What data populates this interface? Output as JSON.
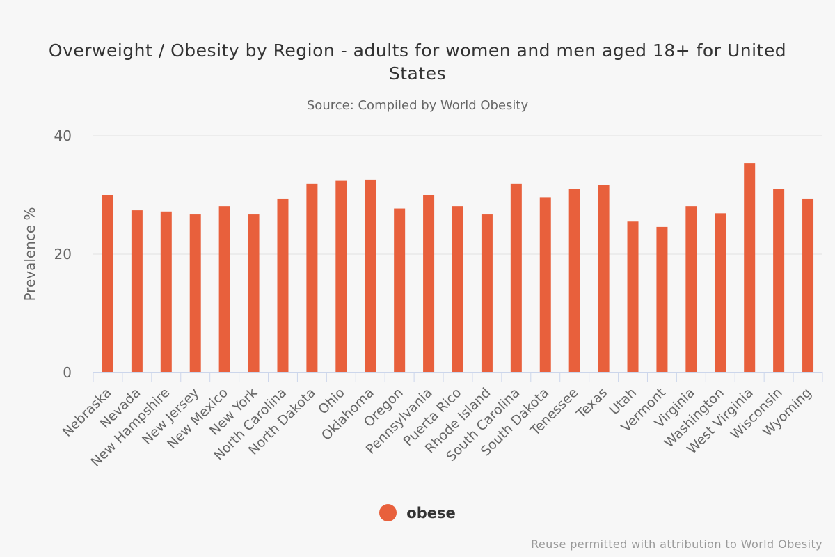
{
  "chart_data": {
    "type": "bar",
    "title": "Overweight / Obesity by Region - adults for women and men aged 18+ for United States",
    "subtitle": "Source: Compiled by World Obesity",
    "ylabel": "Prevalence %",
    "xlabel": "",
    "ylim": [
      0,
      40
    ],
    "yticks": [
      0,
      20,
      40
    ],
    "grid": true,
    "legend_position": "bottom-center",
    "categories": [
      "Nebraska",
      "Nevada",
      "New Hampshire",
      "New Jersey",
      "New Mexico",
      "New York",
      "North Carolina",
      "North Dakota",
      "Ohio",
      "Oklahoma",
      "Oregon",
      "Pennsylvania",
      "Puerta Rico",
      "Rhode Island",
      "South Carolina",
      "South Dakota",
      "Tenessee",
      "Texas",
      "Utah",
      "Vermont",
      "Virginia",
      "Washington",
      "West Virginia",
      "Wisconsin",
      "Wyoming"
    ],
    "series": [
      {
        "name": "obese",
        "color": "#e8603c",
        "values": [
          30.0,
          27.4,
          27.2,
          26.7,
          28.1,
          26.7,
          29.3,
          31.9,
          32.4,
          32.6,
          27.7,
          30.0,
          28.1,
          26.7,
          31.9,
          29.6,
          31.0,
          31.7,
          25.5,
          24.6,
          28.1,
          26.9,
          35.4,
          31.0,
          29.3
        ]
      }
    ]
  },
  "credits": "Reuse permitted with attribution to World Obesity"
}
